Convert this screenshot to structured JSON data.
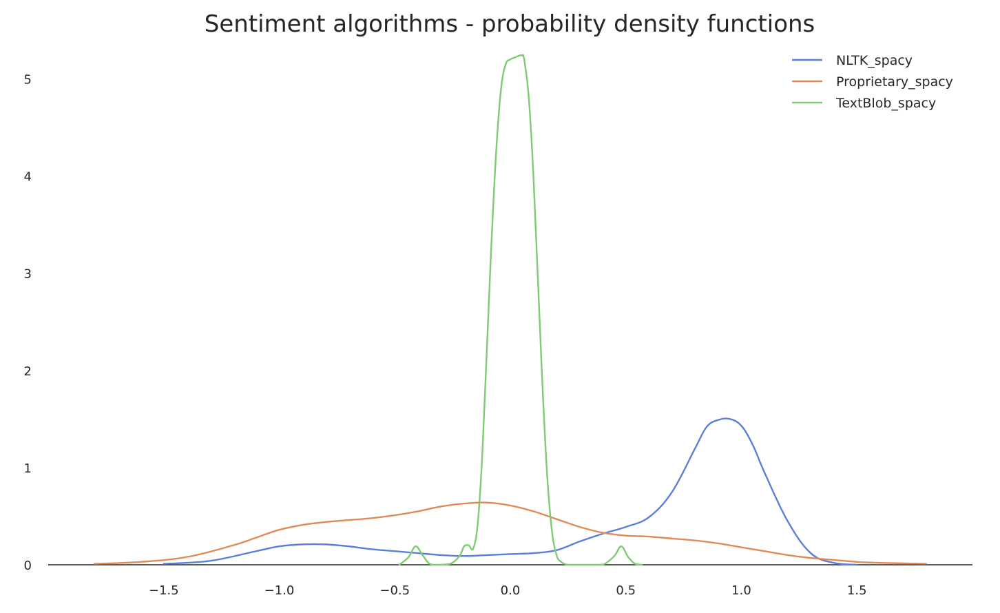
{
  "chart_data": {
    "type": "line",
    "title": "Sentiment algorithms - probability density functions",
    "xlabel": "",
    "ylabel": "",
    "xlim": [
      -2.0,
      2.0
    ],
    "ylim": [
      0,
      5.4
    ],
    "grid": false,
    "legend_position": "top-right",
    "x_ticks": [
      "-1.5",
      "-1.0",
      "-0.5",
      "0.0",
      "0.5",
      "1.0",
      "1.5"
    ],
    "y_ticks": [
      "0",
      "1",
      "2",
      "3",
      "4",
      "5"
    ],
    "series": [
      {
        "name": "NLTK_spacy",
        "color": "#5b7fd8",
        "x": [
          -1.5,
          -1.3,
          -1.1,
          -1.0,
          -0.9,
          -0.8,
          -0.7,
          -0.6,
          -0.5,
          -0.4,
          -0.3,
          -0.2,
          -0.1,
          0.0,
          0.1,
          0.2,
          0.3,
          0.4,
          0.5,
          0.6,
          0.7,
          0.8,
          0.85,
          0.9,
          0.95,
          1.0,
          1.05,
          1.1,
          1.2,
          1.3,
          1.4,
          1.5
        ],
        "values": [
          0.01,
          0.04,
          0.14,
          0.19,
          0.21,
          0.21,
          0.19,
          0.16,
          0.14,
          0.12,
          0.1,
          0.09,
          0.1,
          0.11,
          0.12,
          0.15,
          0.24,
          0.32,
          0.39,
          0.49,
          0.75,
          1.2,
          1.42,
          1.49,
          1.5,
          1.43,
          1.23,
          0.95,
          0.45,
          0.12,
          0.02,
          0.0
        ]
      },
      {
        "name": "Proprietary_spacy",
        "color": "#e08a58",
        "x": [
          -1.8,
          -1.6,
          -1.4,
          -1.2,
          -1.1,
          -1.0,
          -0.9,
          -0.8,
          -0.7,
          -0.6,
          -0.5,
          -0.4,
          -0.3,
          -0.2,
          -0.1,
          0.0,
          0.1,
          0.2,
          0.3,
          0.4,
          0.5,
          0.6,
          0.7,
          0.8,
          0.9,
          1.0,
          1.1,
          1.2,
          1.3,
          1.4,
          1.5,
          1.6,
          1.8
        ],
        "values": [
          0.01,
          0.03,
          0.08,
          0.2,
          0.28,
          0.36,
          0.41,
          0.44,
          0.46,
          0.48,
          0.51,
          0.55,
          0.6,
          0.63,
          0.64,
          0.61,
          0.55,
          0.47,
          0.39,
          0.33,
          0.3,
          0.29,
          0.27,
          0.25,
          0.22,
          0.18,
          0.14,
          0.1,
          0.07,
          0.05,
          0.03,
          0.02,
          0.01
        ]
      },
      {
        "name": "TextBlob_spacy",
        "color": "#7ecb73",
        "x": [
          -0.48,
          -0.44,
          -0.41,
          -0.38,
          -0.35,
          -0.32,
          -0.26,
          -0.22,
          -0.2,
          -0.18,
          -0.16,
          -0.14,
          -0.12,
          -0.1,
          -0.08,
          -0.06,
          -0.04,
          -0.02,
          0.0,
          0.02,
          0.04,
          0.05,
          0.06,
          0.08,
          0.1,
          0.12,
          0.14,
          0.16,
          0.18,
          0.2,
          0.22,
          0.25,
          0.3,
          0.35,
          0.4,
          0.45,
          0.48,
          0.51,
          0.54,
          0.57
        ],
        "values": [
          0.0,
          0.08,
          0.19,
          0.1,
          0.01,
          0.0,
          0.01,
          0.09,
          0.19,
          0.2,
          0.17,
          0.45,
          1.2,
          2.3,
          3.4,
          4.3,
          4.9,
          5.15,
          5.2,
          5.22,
          5.24,
          5.24,
          5.2,
          4.8,
          4.0,
          2.9,
          1.8,
          0.9,
          0.35,
          0.1,
          0.03,
          0.0,
          0.0,
          0.0,
          0.0,
          0.09,
          0.19,
          0.08,
          0.01,
          0.0
        ]
      }
    ]
  }
}
